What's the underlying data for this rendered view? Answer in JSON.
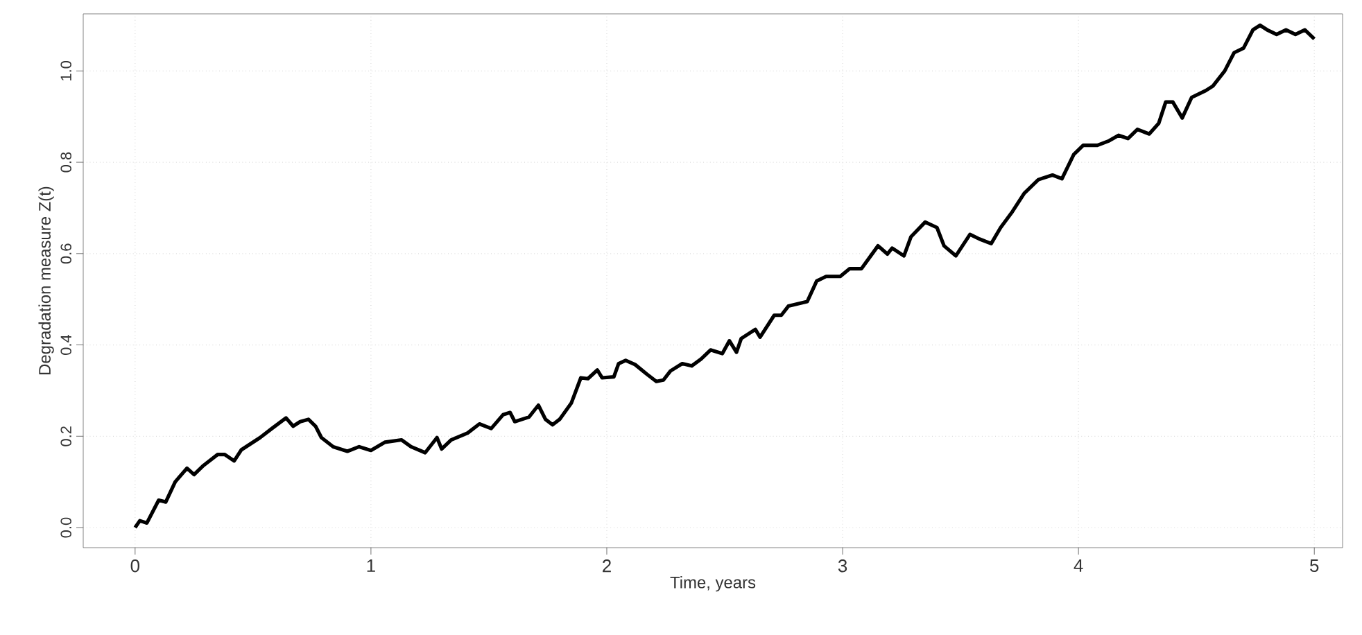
{
  "chart_data": {
    "type": "line",
    "xlabel": "Time, years",
    "ylabel": "Degradation measure Z(t)",
    "xlim": [
      -0.22,
      5.12
    ],
    "ylim": [
      -0.044,
      1.125
    ],
    "xticks": [
      0,
      1,
      2,
      3,
      4,
      5
    ],
    "yticks": [
      {
        "value": 0,
        "label": "0.0"
      },
      {
        "value": 0.2,
        "label": "0.2"
      },
      {
        "value": 0.4,
        "label": "0.4"
      },
      {
        "value": 0.6,
        "label": "0.6"
      },
      {
        "value": 0.8,
        "label": "0.8"
      },
      {
        "value": 1.0,
        "label": "1.0"
      }
    ],
    "grid": true,
    "marker": "none",
    "line_style": "solid",
    "series": [
      {
        "color": "#000000",
        "x": [
          0,
          0.02,
          0.05,
          0.1,
          0.13,
          0.17,
          0.22,
          0.25,
          0.29,
          0.35,
          0.38,
          0.42,
          0.45,
          0.53,
          0.58,
          0.64,
          0.67,
          0.7,
          0.735,
          0.765,
          0.79,
          0.84,
          0.9,
          0.95,
          1.0,
          1.06,
          1.13,
          1.17,
          1.23,
          1.28,
          1.3,
          1.34,
          1.41,
          1.46,
          1.51,
          1.56,
          1.59,
          1.61,
          1.67,
          1.71,
          1.74,
          1.77,
          1.8,
          1.85,
          1.89,
          1.92,
          1.96,
          1.98,
          2.03,
          2.05,
          2.08,
          2.12,
          2.17,
          2.21,
          2.24,
          2.27,
          2.32,
          2.36,
          2.4,
          2.44,
          2.49,
          2.52,
          2.55,
          2.57,
          2.63,
          2.65,
          2.71,
          2.74,
          2.77,
          2.85,
          2.89,
          2.93,
          2.99,
          3.03,
          3.08,
          3.15,
          3.19,
          3.21,
          3.26,
          3.29,
          3.35,
          3.4,
          3.43,
          3.48,
          3.54,
          3.58,
          3.63,
          3.67,
          3.72,
          3.77,
          3.83,
          3.89,
          3.93,
          3.98,
          4.02,
          4.08,
          4.13,
          4.17,
          4.21,
          4.25,
          4.3,
          4.34,
          4.37,
          4.4,
          4.44,
          4.48,
          4.54,
          4.57,
          4.62,
          4.66,
          4.7,
          4.74,
          4.77,
          4.8,
          4.84,
          4.88,
          4.92,
          4.96,
          5.0
        ],
        "values": [
          0,
          0.015,
          0.01,
          0.06,
          0.056,
          0.1,
          0.13,
          0.116,
          0.136,
          0.16,
          0.16,
          0.146,
          0.17,
          0.197,
          0.217,
          0.24,
          0.222,
          0.232,
          0.237,
          0.222,
          0.197,
          0.177,
          0.167,
          0.177,
          0.169,
          0.187,
          0.192,
          0.177,
          0.164,
          0.197,
          0.172,
          0.192,
          0.207,
          0.227,
          0.217,
          0.247,
          0.252,
          0.232,
          0.242,
          0.268,
          0.237,
          0.225,
          0.237,
          0.273,
          0.328,
          0.326,
          0.345,
          0.328,
          0.33,
          0.359,
          0.366,
          0.357,
          0.336,
          0.32,
          0.323,
          0.343,
          0.359,
          0.354,
          0.369,
          0.389,
          0.381,
          0.409,
          0.384,
          0.414,
          0.434,
          0.417,
          0.465,
          0.465,
          0.485,
          0.495,
          0.54,
          0.55,
          0.55,
          0.567,
          0.567,
          0.617,
          0.599,
          0.612,
          0.595,
          0.637,
          0.669,
          0.657,
          0.617,
          0.595,
          0.642,
          0.632,
          0.622,
          0.657,
          0.692,
          0.732,
          0.762,
          0.772,
          0.764,
          0.817,
          0.837,
          0.837,
          0.847,
          0.859,
          0.852,
          0.872,
          0.862,
          0.885,
          0.932,
          0.932,
          0.897,
          0.942,
          0.957,
          0.967,
          1.0,
          1.04,
          1.05,
          1.09,
          1.1,
          1.09,
          1.08,
          1.09,
          1.08,
          1.09,
          1.07
        ]
      }
    ]
  }
}
